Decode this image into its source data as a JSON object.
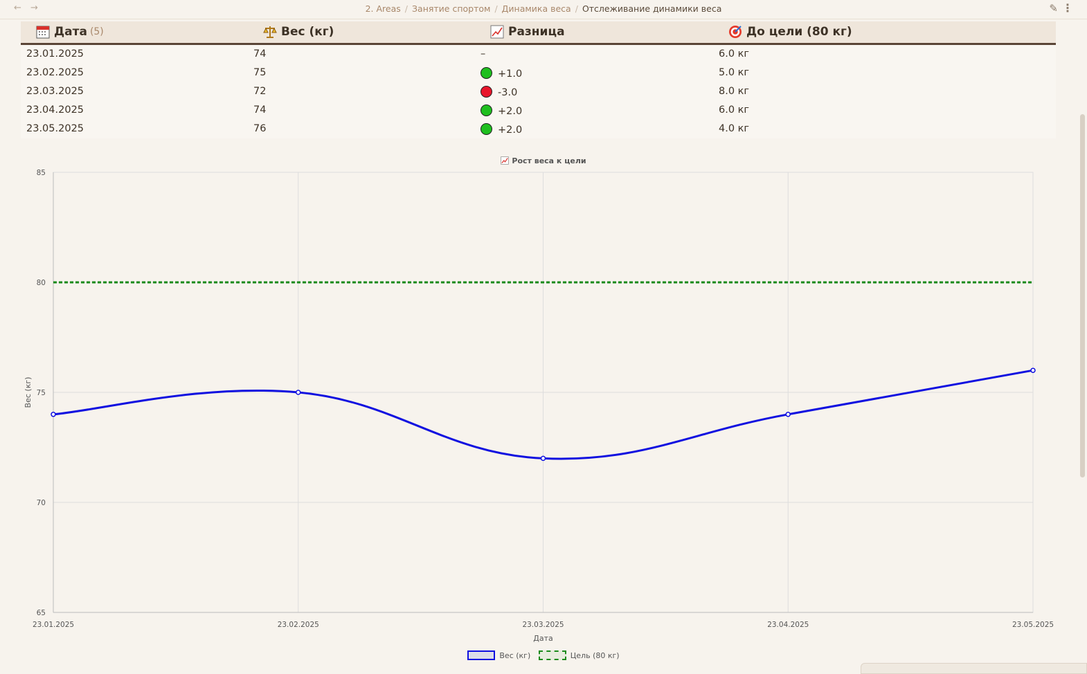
{
  "breadcrumb": {
    "items": [
      "2. Areas",
      "Занятие спортом",
      "Динамика веса"
    ],
    "current": "Отслеживание динамики веса"
  },
  "icons": {
    "back": "arrow-left-icon",
    "forward": "arrow-right-icon",
    "edit": "pencil-icon",
    "more": "more-vertical-icon"
  },
  "table": {
    "headers": {
      "date": "Дата",
      "date_count": "(5)",
      "weight": "Вес (кг)",
      "diff": "Разница",
      "goal": "До цели (80 кг)"
    },
    "rows": [
      {
        "date": "23.01.2025",
        "weight": "74",
        "diff": "–",
        "diff_status": "none",
        "to_goal": "6.0 кг"
      },
      {
        "date": "23.02.2025",
        "weight": "75",
        "diff": "+1.0",
        "diff_status": "up",
        "to_goal": "5.0 кг"
      },
      {
        "date": "23.03.2025",
        "weight": "72",
        "diff": "-3.0",
        "diff_status": "down",
        "to_goal": "8.0 кг"
      },
      {
        "date": "23.04.2025",
        "weight": "74",
        "diff": "+2.0",
        "diff_status": "up",
        "to_goal": "6.0 кг"
      },
      {
        "date": "23.05.2025",
        "weight": "76",
        "diff": "+2.0",
        "diff_status": "up",
        "to_goal": "4.0 кг"
      }
    ]
  },
  "colors": {
    "up": "#1fbf1f",
    "down": "#e8152a",
    "weight_line": "#1010e0",
    "goal_line": "#1a8a1a"
  },
  "chart_data": {
    "type": "line",
    "title": "Рост веса к цели",
    "xlabel": "Дата",
    "ylabel": "Вес (кг)",
    "categories": [
      "23.01.2025",
      "23.02.2025",
      "23.03.2025",
      "23.04.2025",
      "23.05.2025"
    ],
    "series": [
      {
        "name": "Вес (кг)",
        "values": [
          74,
          75,
          72,
          74,
          76
        ],
        "style": "solid",
        "color": "#1010e0"
      },
      {
        "name": "Цель (80 кг)",
        "values": [
          80,
          80,
          80,
          80,
          80
        ],
        "style": "dashed",
        "color": "#1a8a1a"
      }
    ],
    "ylim": [
      65,
      85
    ],
    "yticks": [
      65,
      70,
      75,
      80,
      85
    ],
    "grid": true,
    "legend": "bottom"
  }
}
